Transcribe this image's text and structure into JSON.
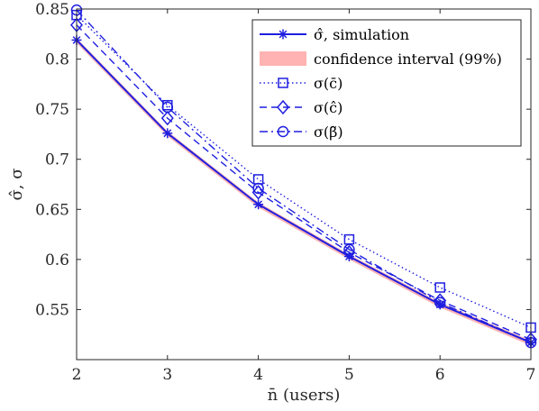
{
  "chart_data": {
    "type": "line",
    "title": "",
    "xlabel": "n̄ (users)",
    "ylabel": "σ̂, σ",
    "x": [
      2,
      3,
      4,
      5,
      6,
      7
    ],
    "xlim": [
      2,
      7
    ],
    "ylim": [
      0.5,
      0.85
    ],
    "xticks": [
      "2",
      "3",
      "4",
      "5",
      "6",
      "7"
    ],
    "yticks": [
      0.55,
      0.6,
      0.65,
      0.7,
      0.75,
      0.8,
      0.85
    ],
    "ytick_labels": [
      "0.55",
      "0.6",
      "0.65",
      "0.7",
      "0.75",
      "0.8",
      "0.85"
    ],
    "grid": false,
    "legend_position": "top-right",
    "confidence_band": {
      "label": "confidence interval (99%)",
      "color": "#ffb3b3",
      "lower": [
        0.816,
        0.723,
        0.652,
        0.6,
        0.552,
        0.514
      ],
      "upper": [
        0.821,
        0.728,
        0.657,
        0.605,
        0.557,
        0.519
      ]
    },
    "series": [
      {
        "name": "σ̂, simulation",
        "values": [
          0.819,
          0.726,
          0.655,
          0.603,
          0.555,
          0.517
        ],
        "color": "#1f1fe0",
        "dash": "solid",
        "marker": "asterisk"
      },
      {
        "name": "σ(c̄)",
        "values": [
          0.844,
          0.754,
          0.68,
          0.62,
          0.572,
          0.532
        ],
        "color": "#1f1fe0",
        "dash": "dotted",
        "marker": "square"
      },
      {
        "name": "σ(ĉ)",
        "values": [
          0.834,
          0.741,
          0.667,
          0.607,
          0.559,
          0.52
        ],
        "color": "#1f1fe0",
        "dash": "dashed",
        "marker": "diamond"
      },
      {
        "name": "σ(β̃)",
        "values": [
          0.849,
          0.752,
          0.671,
          0.61,
          0.557,
          0.517
        ],
        "color": "#1f1fe0",
        "dash": "dashdot",
        "marker": "circle"
      }
    ]
  }
}
